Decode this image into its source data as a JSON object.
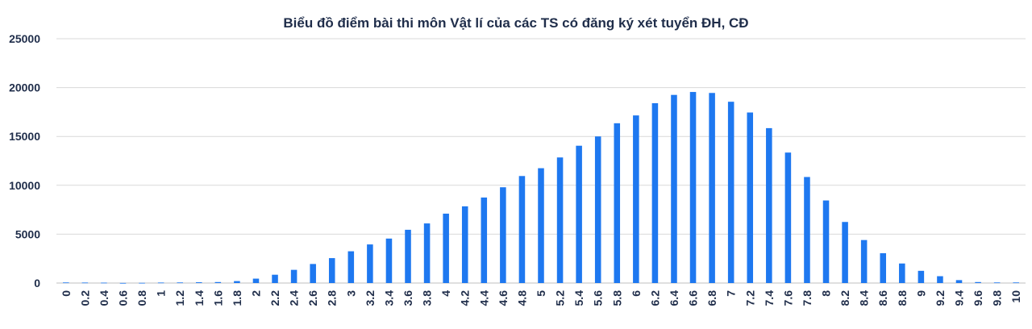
{
  "chart_data": {
    "type": "bar",
    "title": "Biểu đồ điểm bài thi môn Vật lí của các TS có đăng ký xét tuyển ĐH, CĐ",
    "xlabel": "",
    "ylabel": "",
    "ylim": [
      0,
      25000
    ],
    "yticks": [
      0,
      5000,
      10000,
      15000,
      20000,
      25000
    ],
    "grid": true,
    "legend": "none",
    "bar_color": "#1e78f0",
    "categories": [
      "0",
      "0.2",
      "0.4",
      "0.6",
      "0.8",
      "1",
      "1.2",
      "1.4",
      "1.6",
      "1.8",
      "2",
      "2.2",
      "2.4",
      "2.6",
      "2.8",
      "3",
      "3.2",
      "3.4",
      "3.6",
      "3.8",
      "4",
      "4.2",
      "4.4",
      "4.6",
      "4.8",
      "5",
      "5.2",
      "5.4",
      "5.6",
      "5.8",
      "6",
      "6.2",
      "6.4",
      "6.6",
      "6.8",
      "7",
      "7.2",
      "7.4",
      "7.6",
      "7.8",
      "8",
      "8.2",
      "8.4",
      "8.6",
      "8.8",
      "9",
      "9.2",
      "9.4",
      "9.6",
      "9.8",
      "10"
    ],
    "values": [
      60,
      50,
      40,
      10,
      20,
      50,
      60,
      80,
      100,
      200,
      450,
      850,
      1350,
      1950,
      2550,
      3250,
      3950,
      4550,
      5450,
      6100,
      7100,
      7850,
      8750,
      9800,
      10950,
      11750,
      12850,
      14050,
      15000,
      16350,
      17150,
      18400,
      19250,
      19550,
      19450,
      18550,
      17450,
      15850,
      13350,
      10850,
      8450,
      6250,
      4400,
      3050,
      2000,
      1250,
      700,
      300,
      100,
      60,
      60
    ]
  }
}
